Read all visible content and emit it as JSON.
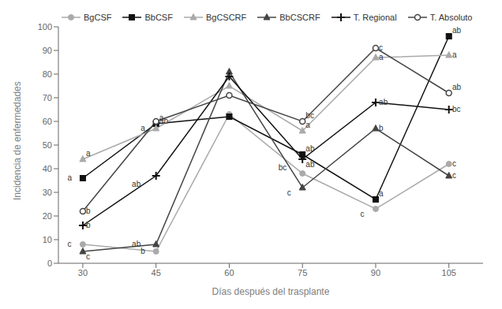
{
  "chart_data": {
    "type": "line",
    "xlabel": "Días después del trasplante",
    "ylabel": "Incidencia de enfermedades",
    "x": [
      30,
      45,
      60,
      75,
      90,
      105
    ],
    "xlim": [
      25,
      112
    ],
    "xticks": [
      30,
      45,
      60,
      75,
      90,
      105
    ],
    "ylim": [
      0,
      100
    ],
    "yticks": [
      0,
      10,
      20,
      30,
      40,
      50,
      60,
      70,
      80,
      90,
      100
    ],
    "grid": false,
    "legend": "upper left",
    "series": [
      {
        "name": "BgCSF",
        "color": "#aaaaaa",
        "marker": "circle",
        "values": [
          8,
          5,
          63,
          38,
          23,
          42
        ]
      },
      {
        "name": "BbCSF",
        "color": "#111111",
        "marker": "square",
        "values": [
          36,
          59,
          62,
          46,
          27,
          96
        ]
      },
      {
        "name": "BgCSCRF",
        "color": "#aaaaaa",
        "marker": "triangle",
        "values": [
          44,
          57,
          75,
          56,
          87,
          88
        ]
      },
      {
        "name": "BbCSCRF",
        "color": "#444444",
        "marker": "triangle",
        "values": [
          5,
          8,
          81,
          32,
          57,
          37
        ]
      },
      {
        "name": "T. Regional",
        "color": "#111111",
        "marker": "plus",
        "values": [
          16,
          37,
          79,
          44,
          68,
          65
        ]
      },
      {
        "name": "T. Absoluto",
        "color": "#444444",
        "marker": "circle_open",
        "values": [
          22,
          60,
          71,
          60,
          91,
          72
        ]
      }
    ],
    "annotations": [
      {
        "x": 30,
        "series": "BgCSF",
        "label": "c"
      },
      {
        "x": 30,
        "series": "BbCSF",
        "label": "a"
      },
      {
        "x": 30,
        "series": "BgCSCRF",
        "label": "a"
      },
      {
        "x": 30,
        "series": "BbCSCRF",
        "label": "c"
      },
      {
        "x": 30,
        "series": "T. Regional",
        "label": "b"
      },
      {
        "x": 30,
        "series": "T. Absoluto",
        "label": "b"
      },
      {
        "x": 45,
        "series": "BgCSF",
        "label": "b"
      },
      {
        "x": 45,
        "series": "BbCSF",
        "label": "a"
      },
      {
        "x": 45,
        "series": "BgCSCRF",
        "label": "a"
      },
      {
        "x": 45,
        "series": "BbCSCRF",
        "label": "ab"
      },
      {
        "x": 45,
        "series": "T. Regional",
        "label": "ab"
      },
      {
        "x": 45,
        "series": "T. Absoluto",
        "label": "ab"
      },
      {
        "x": 75,
        "series": "BgCSF",
        "label": "bc"
      },
      {
        "x": 75,
        "series": "BbCSF",
        "label": "ab"
      },
      {
        "x": 75,
        "series": "BgCSCRF",
        "label": "a"
      },
      {
        "x": 75,
        "series": "BbCSCRF",
        "label": "c"
      },
      {
        "x": 75,
        "series": "T. Regional",
        "label": "ab"
      },
      {
        "x": 75,
        "series": "T. Absoluto",
        "label": "bc"
      },
      {
        "x": 90,
        "series": "BgCSF",
        "label": "c"
      },
      {
        "x": 90,
        "series": "BbCSF",
        "label": "a"
      },
      {
        "x": 90,
        "series": "BgCSCRF",
        "label": "a"
      },
      {
        "x": 90,
        "series": "BbCSCRF",
        "label": "b"
      },
      {
        "x": 90,
        "series": "T. Regional",
        "label": "ab"
      },
      {
        "x": 90,
        "series": "T. Absoluto",
        "label": "c"
      },
      {
        "x": 105,
        "series": "BgCSF",
        "label": "c"
      },
      {
        "x": 105,
        "series": "BbCSF",
        "label": "ab"
      },
      {
        "x": 105,
        "series": "BgCSCRF",
        "label": "a"
      },
      {
        "x": 105,
        "series": "BbCSCRF",
        "label": "c"
      },
      {
        "x": 105,
        "series": "T. Regional",
        "label": "bc"
      },
      {
        "x": 105,
        "series": "T. Absoluto",
        "label": "ab"
      }
    ]
  }
}
